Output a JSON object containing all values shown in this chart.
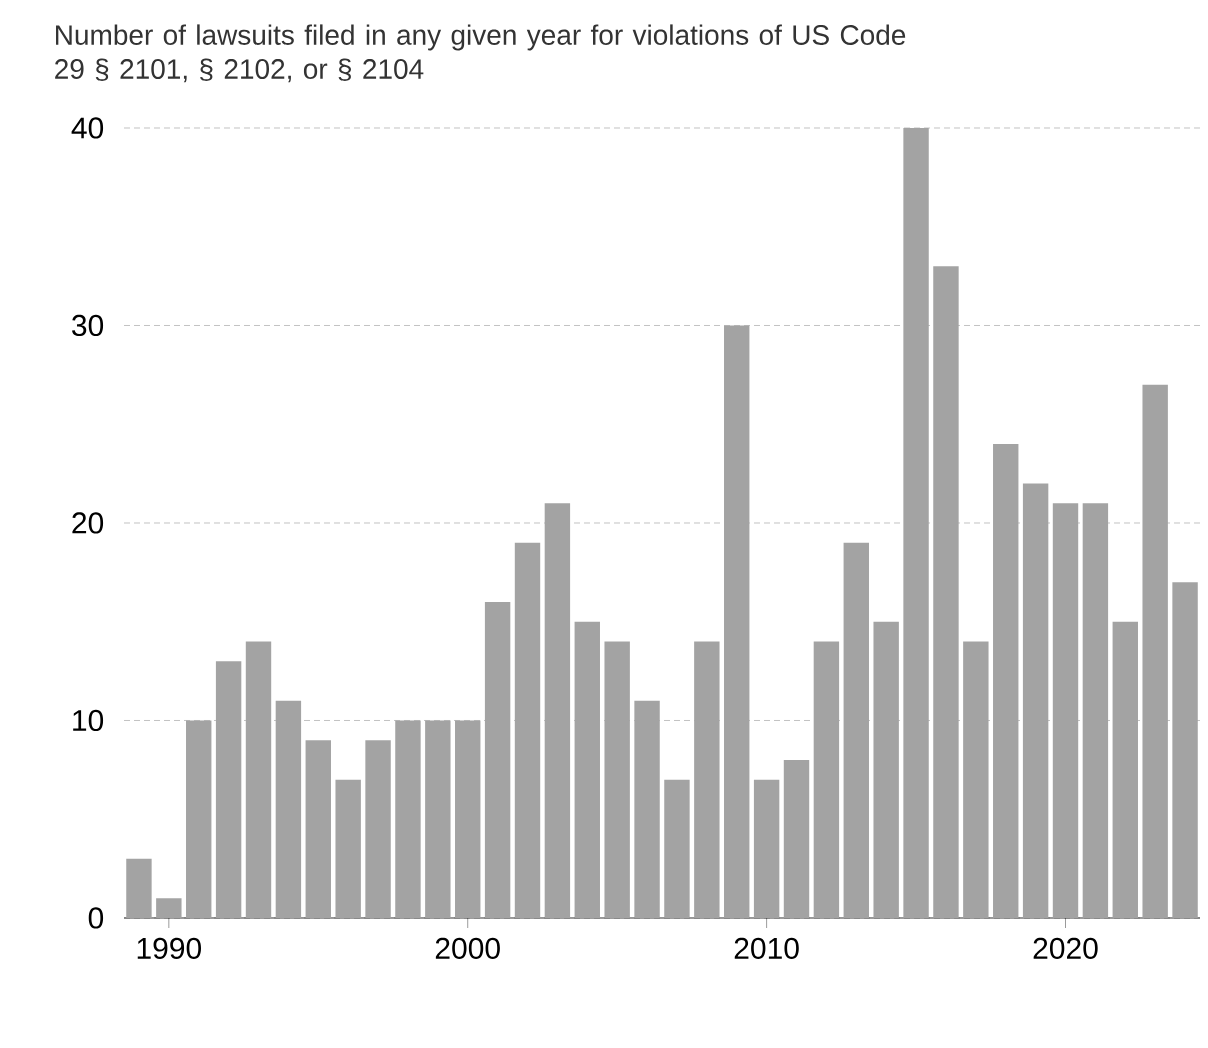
{
  "chart_data": {
    "type": "bar",
    "title": "Number of lawsuits filed in any given year for violations of US Code 29 § 2101, § 2102, or § 2104",
    "x": [
      1989,
      1990,
      1991,
      1992,
      1993,
      1994,
      1995,
      1996,
      1997,
      1998,
      1999,
      2000,
      2001,
      2002,
      2003,
      2004,
      2005,
      2006,
      2007,
      2008,
      2009,
      2010,
      2011,
      2012,
      2013,
      2014,
      2015,
      2016,
      2017,
      2018,
      2019,
      2020,
      2021,
      2022,
      2023,
      2024
    ],
    "values": [
      3,
      1,
      10,
      13,
      14,
      11,
      9,
      7,
      9,
      10,
      10,
      10,
      16,
      19,
      21,
      15,
      14,
      11,
      7,
      14,
      30,
      7,
      8,
      14,
      19,
      15,
      40,
      33,
      14,
      24,
      22,
      21,
      21,
      15,
      27,
      17
    ],
    "color": "#a3a3a3",
    "xlim": [
      1988.5,
      2024.5
    ],
    "xticks": [
      1990,
      2000,
      2010,
      2020
    ],
    "ylim": [
      0,
      40
    ],
    "yticks": [
      0,
      10,
      20,
      30,
      40
    ],
    "grid": "y"
  }
}
